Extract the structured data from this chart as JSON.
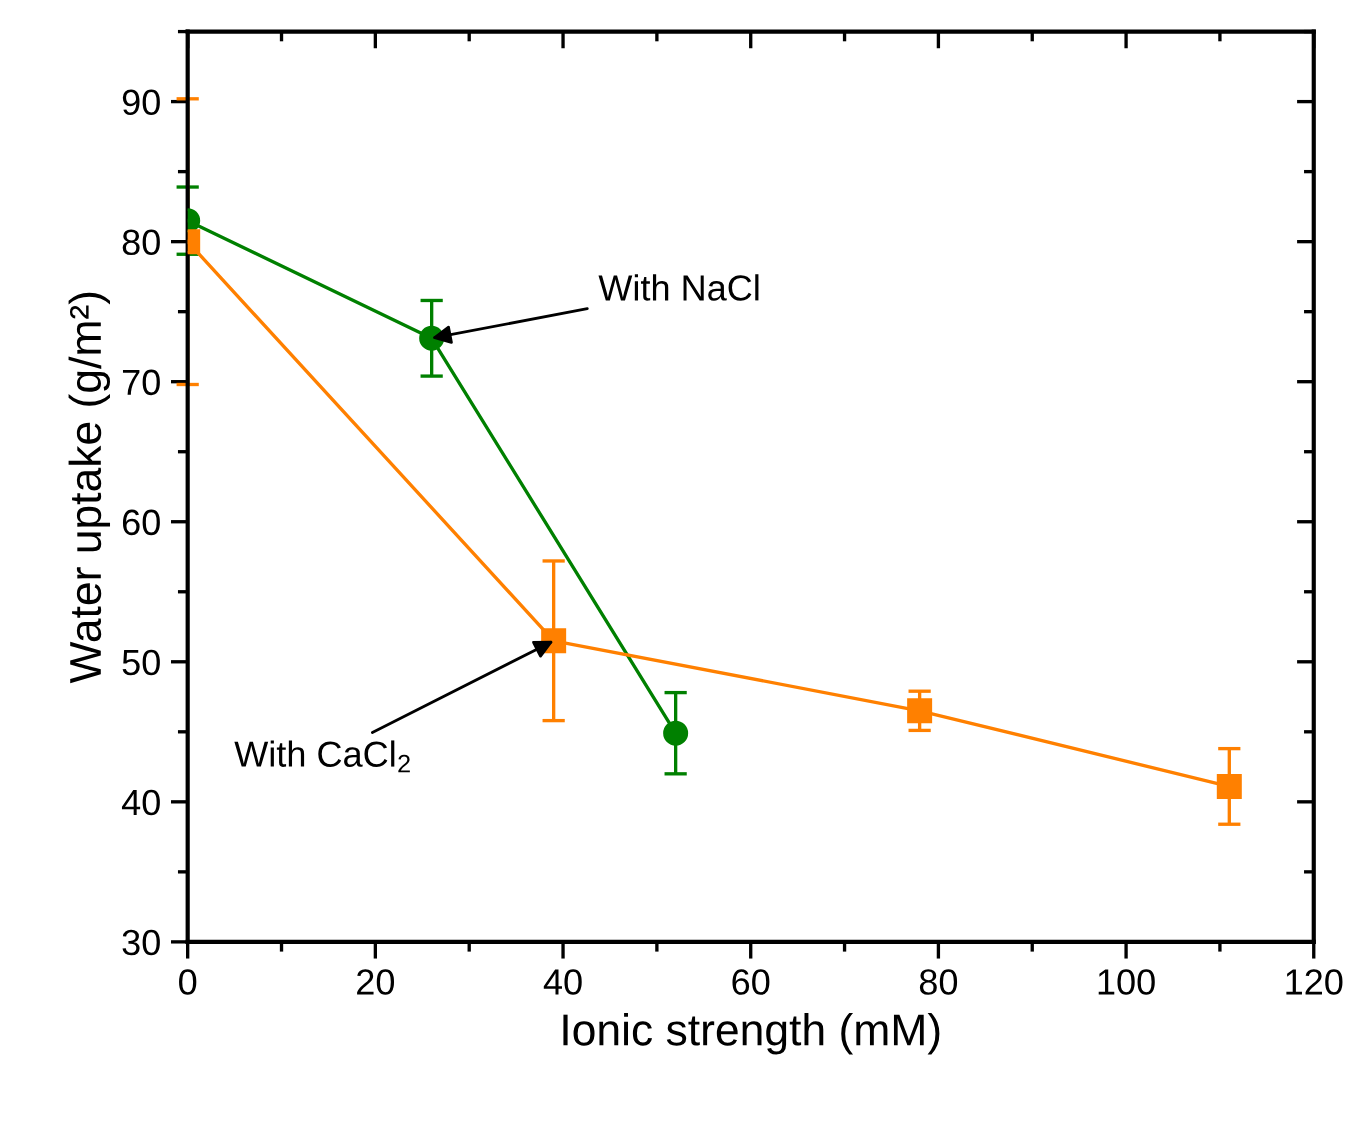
{
  "chart_data": {
    "type": "line",
    "xlabel": "Ionic strength (mM)",
    "ylabel": "Water uptake (g/m²)",
    "xlim": [
      0,
      120
    ],
    "ylim": [
      30,
      95
    ],
    "xticks": [
      0,
      {
        "value": 10,
        "label": null
      },
      20,
      {
        "value": 30,
        "label": null
      },
      40,
      {
        "value": 50,
        "label": null
      },
      60,
      {
        "value": 70,
        "label": null
      },
      80,
      {
        "value": 90,
        "label": null
      },
      100,
      {
        "value": 110,
        "label": null
      },
      120
    ],
    "yticks": [
      30,
      {
        "value": 35,
        "label": null
      },
      40,
      {
        "value": 45,
        "label": null
      },
      50,
      {
        "value": 55,
        "label": null
      },
      60,
      {
        "value": 65,
        "label": null
      },
      70,
      {
        "value": 75,
        "label": null
      },
      80,
      {
        "value": 85,
        "label": null
      },
      90,
      {
        "value": 95,
        "label": null
      }
    ],
    "grid": false,
    "line_style": "solid",
    "series": [
      {
        "color": "#008000",
        "marker": "circle",
        "x": [
          0,
          26,
          52
        ],
        "values": [
          81.5,
          73.1,
          44.9
        ],
        "errors": [
          2.4,
          2.7,
          2.9
        ]
      },
      {
        "color": "#ff8000",
        "marker": "square",
        "x": [
          0,
          39,
          78,
          111
        ],
        "values": [
          80.0,
          51.5,
          46.5,
          41.1
        ],
        "errors": [
          10.2,
          5.7,
          1.4,
          2.7
        ]
      }
    ],
    "annotations": [
      {
        "text": "With NaCl",
        "x": 26,
        "y": 73.1
      },
      {
        "text": "With CaCl$_{2}$",
        "x": 39,
        "y": 51.5
      }
    ]
  }
}
